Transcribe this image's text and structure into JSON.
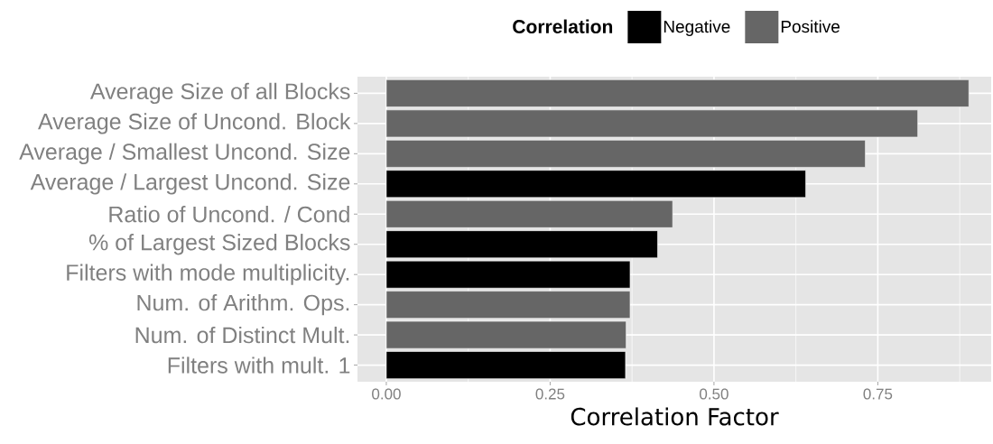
{
  "chart_data": {
    "type": "bar",
    "orientation": "horizontal",
    "xlabel": "Correlation Factor",
    "legend_title": "Correlation",
    "legend": "top",
    "grid": true,
    "categories": [
      "Average Size of all Blocks",
      "Average Size of Uncond. Block",
      "Average / Smallest Uncond. Size",
      "Average / Largest Uncond. Size",
      "Ratio of Uncond. / Cond",
      "% of Largest Sized Blocks",
      "Filters with mode multiplicity.",
      "Num. of Arithm. Ops.",
      "Num. of Distinct Mult.",
      "Filters with mult. 1"
    ],
    "series": [
      {
        "name": "Negative",
        "color": "#000000",
        "values": [
          null,
          null,
          null,
          0.64,
          null,
          0.414,
          0.372,
          null,
          null,
          0.365
        ]
      },
      {
        "name": "Positive",
        "color": "#666666",
        "values": [
          0.889,
          0.811,
          0.731,
          null,
          0.437,
          null,
          null,
          0.372,
          0.366,
          null
        ]
      }
    ],
    "xlim": [
      -0.044,
      0.923
    ],
    "xticks": [
      {
        "value": 0,
        "label": "0.00"
      },
      {
        "value": 0.25,
        "label": "0.25"
      },
      {
        "value": 0.5,
        "label": "0.50"
      },
      {
        "value": 0.75,
        "label": "0.75"
      }
    ]
  }
}
